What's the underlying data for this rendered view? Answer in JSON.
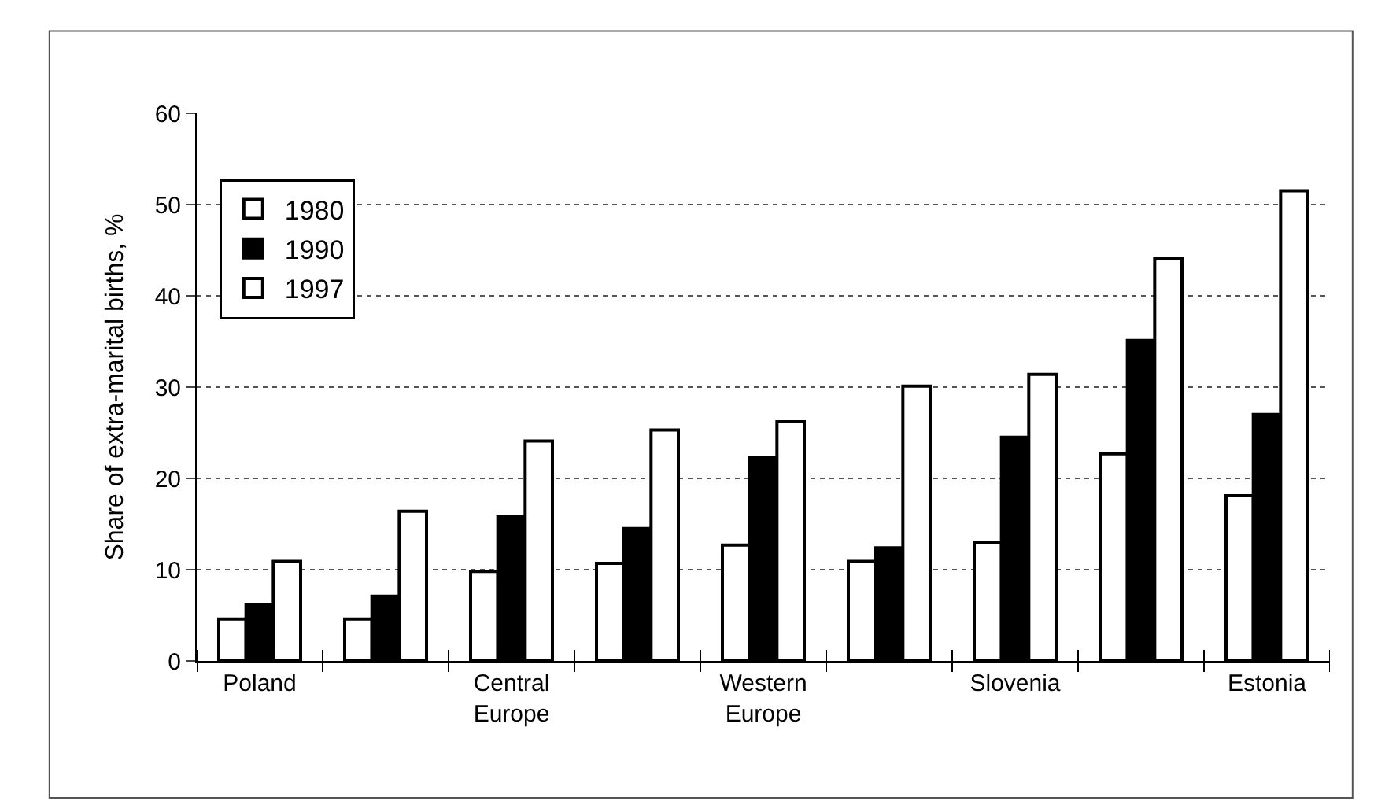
{
  "chart_data": {
    "type": "bar",
    "ylabel": "Share of extra-marital births, %",
    "categories": [
      "Poland",
      null,
      "Central Europe",
      null,
      "Western Europe",
      null,
      "Slovenia",
      null,
      "Estonia"
    ],
    "series": [
      {
        "name": "1980",
        "color": "#ffffff",
        "values": [
          4.6,
          4.6,
          9.8,
          10.7,
          12.7,
          10.9,
          13.0,
          22.7,
          18.1
        ]
      },
      {
        "name": "1990",
        "color": "#000000",
        "values": [
          6.2,
          7.1,
          15.8,
          14.5,
          22.3,
          12.4,
          24.5,
          35.1,
          27.0
        ]
      },
      {
        "name": "1997",
        "color": "#ffffff",
        "values": [
          10.9,
          16.4,
          24.1,
          25.3,
          26.2,
          30.1,
          31.4,
          44.1,
          51.5
        ]
      }
    ],
    "ylim": [
      0,
      60
    ],
    "yticks": [
      0,
      10,
      20,
      30,
      40,
      50,
      60
    ],
    "grid": "y",
    "legend": "top left"
  }
}
